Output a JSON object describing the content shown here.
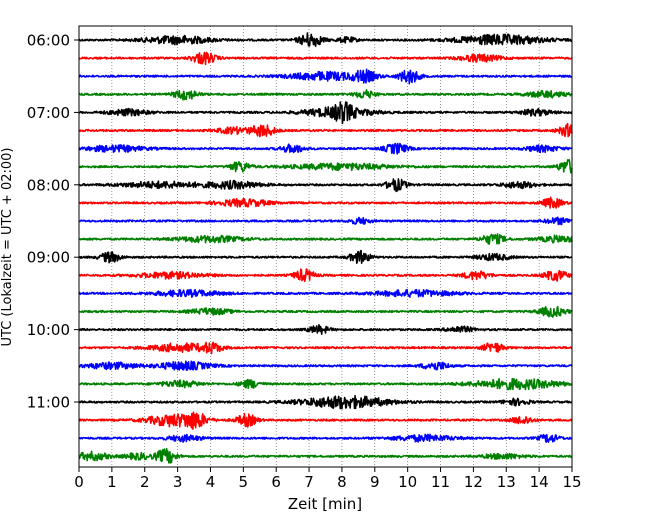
{
  "chart_data": {
    "type": "line",
    "title": "",
    "xlabel": "Zeit  [min]",
    "ylabel": "UTC (Lokalzeit = UTC + 02:00)",
    "xlim": [
      0,
      15
    ],
    "x_ticks": [
      "0",
      "1",
      "2",
      "3",
      "4",
      "5",
      "6",
      "7",
      "8",
      "9",
      "10",
      "11",
      "12",
      "13",
      "14",
      "15"
    ],
    "y_tick_labels": [
      "06:00",
      "07:00",
      "08:00",
      "09:00",
      "10:00",
      "11:00"
    ],
    "grid": "vertical dotted lines at each minute",
    "legend": "none",
    "trace_colors": [
      "#000000",
      "#ff0000",
      "#0000ff",
      "#008000"
    ],
    "series": [
      {
        "start": "06:00",
        "color": "black",
        "events": [
          [
            3.0,
            4.0,
            1.0
          ],
          [
            7.05,
            7.0,
            0.35
          ],
          [
            8.15,
            2.5,
            0.3
          ],
          [
            12.8,
            5.0,
            1.3
          ]
        ]
      },
      {
        "start": "06:15",
        "color": "red",
        "events": [
          [
            3.8,
            6.0,
            0.35
          ],
          [
            12.2,
            3.5,
            0.6
          ]
        ]
      },
      {
        "start": "06:30",
        "color": "blue",
        "events": [
          [
            7.5,
            4.0,
            1.1
          ],
          [
            8.7,
            5.0,
            0.35
          ],
          [
            10.05,
            7.0,
            0.3
          ]
        ]
      },
      {
        "start": "06:45",
        "color": "green",
        "events": [
          [
            3.25,
            5.0,
            0.35
          ],
          [
            8.7,
            4.0,
            0.3
          ],
          [
            14.2,
            3.0,
            0.6
          ]
        ]
      },
      {
        "start": "07:00",
        "color": "black",
        "events": [
          [
            1.5,
            3.0,
            0.6
          ],
          [
            7.9,
            5.0,
            1.0
          ],
          [
            8.05,
            6.0,
            0.25
          ],
          [
            13.9,
            3.0,
            0.5
          ]
        ]
      },
      {
        "start": "07:15",
        "color": "red",
        "events": [
          [
            4.7,
            3.0,
            0.5
          ],
          [
            5.6,
            6.0,
            0.35
          ],
          [
            14.9,
            6.0,
            0.3
          ]
        ]
      },
      {
        "start": "07:30",
        "color": "blue",
        "events": [
          [
            1.1,
            3.0,
            0.9
          ],
          [
            6.5,
            4.0,
            0.35
          ],
          [
            9.65,
            5.0,
            0.35
          ],
          [
            14.1,
            3.0,
            0.5
          ]
        ]
      },
      {
        "start": "07:45",
        "color": "green",
        "events": [
          [
            4.9,
            5.0,
            0.3
          ],
          [
            8.0,
            3.0,
            1.5
          ],
          [
            14.9,
            7.0,
            0.3
          ]
        ]
      },
      {
        "start": "08:00",
        "color": "black",
        "events": [
          [
            2.5,
            3.0,
            1.2
          ],
          [
            4.7,
            3.5,
            0.8
          ],
          [
            9.65,
            6.0,
            0.3
          ],
          [
            13.4,
            3.0,
            0.5
          ]
        ]
      },
      {
        "start": "08:15",
        "color": "red",
        "events": [
          [
            5.0,
            3.5,
            0.8
          ],
          [
            14.4,
            5.0,
            0.3
          ]
        ]
      },
      {
        "start": "08:30",
        "color": "blue",
        "events": [
          [
            8.55,
            3.0,
            0.3
          ],
          [
            14.6,
            3.0,
            0.4
          ]
        ]
      },
      {
        "start": "08:45",
        "color": "green",
        "events": [
          [
            4.0,
            3.0,
            1.0
          ],
          [
            12.6,
            5.0,
            0.35
          ],
          [
            14.6,
            3.0,
            0.6
          ]
        ]
      },
      {
        "start": "09:00",
        "color": "black",
        "events": [
          [
            0.95,
            5.0,
            0.3
          ],
          [
            8.55,
            6.0,
            0.3
          ],
          [
            12.6,
            3.0,
            0.5
          ]
        ]
      },
      {
        "start": "09:15",
        "color": "red",
        "events": [
          [
            2.8,
            3.0,
            1.0
          ],
          [
            6.85,
            6.0,
            0.3
          ],
          [
            12.1,
            4.0,
            0.4
          ],
          [
            14.5,
            5.0,
            0.35
          ]
        ]
      },
      {
        "start": "09:30",
        "color": "blue",
        "events": [
          [
            3.3,
            3.0,
            1.0
          ],
          [
            10.2,
            3.0,
            1.2
          ]
        ]
      },
      {
        "start": "09:45",
        "color": "green",
        "events": [
          [
            4.0,
            3.0,
            0.6
          ],
          [
            14.4,
            5.0,
            0.4
          ]
        ]
      },
      {
        "start": "10:00",
        "color": "black",
        "events": [
          [
            7.3,
            4.0,
            0.3
          ],
          [
            11.6,
            3.0,
            0.4
          ]
        ]
      },
      {
        "start": "10:15",
        "color": "red",
        "events": [
          [
            3.1,
            4.0,
            0.9
          ],
          [
            4.05,
            4.0,
            0.3
          ],
          [
            12.6,
            5.0,
            0.3
          ]
        ]
      },
      {
        "start": "10:30",
        "color": "blue",
        "events": [
          [
            3.2,
            4.0,
            0.8
          ],
          [
            1.0,
            3.0,
            0.8
          ],
          [
            10.85,
            4.0,
            0.4
          ]
        ]
      },
      {
        "start": "10:45",
        "color": "green",
        "events": [
          [
            5.2,
            4.0,
            0.3
          ],
          [
            13.3,
            5.0,
            1.3
          ],
          [
            3.1,
            3.0,
            0.6
          ]
        ]
      },
      {
        "start": "11:00",
        "color": "black",
        "events": [
          [
            8.1,
            6.0,
            1.3
          ],
          [
            13.3,
            3.0,
            0.4
          ]
        ]
      },
      {
        "start": "11:15",
        "color": "red",
        "events": [
          [
            2.9,
            6.0,
            0.8
          ],
          [
            3.55,
            6.0,
            0.3
          ],
          [
            5.1,
            6.0,
            0.3
          ],
          [
            13.5,
            4.0,
            0.3
          ]
        ]
      },
      {
        "start": "11:30",
        "color": "blue",
        "events": [
          [
            3.2,
            3.0,
            0.5
          ],
          [
            10.5,
            3.0,
            0.9
          ],
          [
            14.3,
            4.0,
            0.3
          ]
        ]
      },
      {
        "start": "11:45",
        "color": "green",
        "events": [
          [
            0.4,
            4.0,
            0.5
          ],
          [
            1.8,
            3.0,
            0.4
          ],
          [
            2.65,
            7.0,
            0.3
          ],
          [
            12.9,
            2.5,
            0.6
          ]
        ]
      }
    ]
  }
}
